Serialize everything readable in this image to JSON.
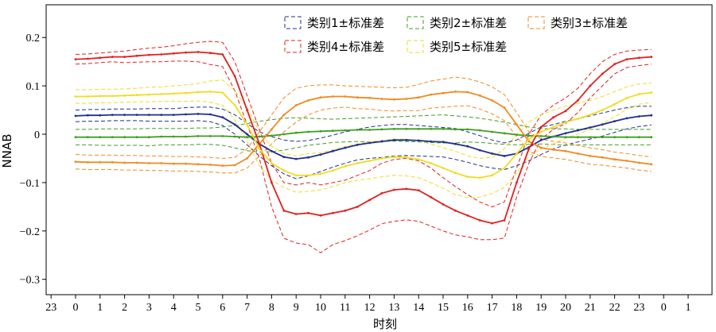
{
  "chart_data": {
    "type": "line",
    "xlabel": "时刻",
    "ylabel": "NNAB",
    "ylim": [
      -0.33,
      0.25
    ],
    "xlim": [
      -1,
      24.1
    ],
    "x_ticks": [
      {
        "pos": -1,
        "label": "23"
      },
      {
        "pos": 0,
        "label": "0"
      },
      {
        "pos": 1,
        "label": "1"
      },
      {
        "pos": 2,
        "label": "2"
      },
      {
        "pos": 3,
        "label": "3"
      },
      {
        "pos": 4,
        "label": "4"
      },
      {
        "pos": 5,
        "label": "5"
      },
      {
        "pos": 6,
        "label": "6"
      },
      {
        "pos": 7,
        "label": "7"
      },
      {
        "pos": 8,
        "label": "8"
      },
      {
        "pos": 9,
        "label": "9"
      },
      {
        "pos": 10,
        "label": "10"
      },
      {
        "pos": 11,
        "label": "11"
      },
      {
        "pos": 12,
        "label": "12"
      },
      {
        "pos": 13,
        "label": "13"
      },
      {
        "pos": 14,
        "label": "14"
      },
      {
        "pos": 15,
        "label": "15"
      },
      {
        "pos": 16,
        "label": "16"
      },
      {
        "pos": 17,
        "label": "17"
      },
      {
        "pos": 18,
        "label": "18"
      },
      {
        "pos": 19,
        "label": "19"
      },
      {
        "pos": 20,
        "label": "20"
      },
      {
        "pos": 21,
        "label": "21"
      },
      {
        "pos": 22,
        "label": "22"
      },
      {
        "pos": 23,
        "label": "23"
      },
      {
        "pos": 24,
        "label": "0"
      },
      {
        "pos": 25,
        "label": "1"
      }
    ],
    "y_ticks": [
      {
        "value": 0.2,
        "label": "0.2"
      },
      {
        "value": 0.1,
        "label": "0.1"
      },
      {
        "value": 0,
        "label": "0"
      },
      {
        "value": -0.1,
        "label": "−0.1"
      },
      {
        "value": -0.2,
        "label": "−0.2"
      },
      {
        "value": -0.3,
        "label": "−0.3"
      }
    ],
    "legend_position": "top-right",
    "x": [
      0,
      0.5,
      1,
      1.5,
      2,
      2.5,
      3,
      3.5,
      4,
      4.5,
      5,
      5.5,
      6,
      6.5,
      7,
      7.5,
      8,
      8.5,
      9,
      9.5,
      10,
      10.5,
      11,
      11.5,
      12,
      12.5,
      13,
      13.5,
      14,
      14.5,
      15,
      15.5,
      16,
      16.5,
      17,
      17.5,
      18,
      18.5,
      19,
      19.5,
      20,
      20.5,
      21,
      21.5,
      22,
      22.5,
      23,
      23.5
    ],
    "series": [
      {
        "name": "类别1±标准差",
        "color": "#1f2f8f",
        "mean": [
          0.038,
          0.039,
          0.039,
          0.04,
          0.04,
          0.04,
          0.04,
          0.04,
          0.04,
          0.041,
          0.042,
          0.041,
          0.035,
          0.02,
          0.0,
          -0.02,
          -0.035,
          -0.047,
          -0.051,
          -0.048,
          -0.042,
          -0.035,
          -0.028,
          -0.022,
          -0.018,
          -0.015,
          -0.012,
          -0.012,
          -0.013,
          -0.015,
          -0.016,
          -0.02,
          -0.025,
          -0.033,
          -0.04,
          -0.045,
          -0.04,
          -0.027,
          -0.012,
          -0.005,
          0.002,
          0.008,
          0.014,
          0.02,
          0.027,
          0.033,
          0.037,
          0.039
        ],
        "upper": [
          0.05,
          0.051,
          0.051,
          0.052,
          0.052,
          0.052,
          0.053,
          0.053,
          0.053,
          0.055,
          0.056,
          0.056,
          0.052,
          0.04,
          0.022,
          0.005,
          -0.005,
          -0.012,
          -0.015,
          -0.013,
          -0.008,
          -0.002,
          0.005,
          0.01,
          0.015,
          0.018,
          0.02,
          0.02,
          0.018,
          0.016,
          0.014,
          0.012,
          0.005,
          -0.003,
          -0.012,
          -0.018,
          -0.012,
          0.002,
          0.015,
          0.02,
          0.027,
          0.032,
          0.038,
          0.044,
          0.05,
          0.055,
          0.058,
          0.058
        ],
        "lower": [
          0.026,
          0.027,
          0.027,
          0.028,
          0.028,
          0.028,
          0.027,
          0.027,
          0.027,
          0.027,
          0.028,
          0.026,
          0.018,
          0.0,
          -0.022,
          -0.045,
          -0.065,
          -0.082,
          -0.092,
          -0.086,
          -0.077,
          -0.068,
          -0.06,
          -0.053,
          -0.05,
          -0.048,
          -0.045,
          -0.044,
          -0.045,
          -0.046,
          -0.047,
          -0.052,
          -0.058,
          -0.065,
          -0.07,
          -0.073,
          -0.065,
          -0.055,
          -0.042,
          -0.03,
          -0.022,
          -0.016,
          -0.01,
          -0.004,
          0.004,
          0.011,
          0.016,
          0.019
        ]
      },
      {
        "name": "类别2±标准差",
        "color": "#3f9f1f",
        "mean": [
          -0.006,
          -0.006,
          -0.006,
          -0.006,
          -0.006,
          -0.006,
          -0.006,
          -0.005,
          -0.005,
          -0.005,
          -0.004,
          -0.004,
          -0.004,
          -0.005,
          -0.006,
          -0.005,
          -0.003,
          0.0,
          0.003,
          0.005,
          0.006,
          0.007,
          0.008,
          0.009,
          0.009,
          0.01,
          0.011,
          0.011,
          0.011,
          0.011,
          0.011,
          0.01,
          0.01,
          0.008,
          0.005,
          0.002,
          -0.001,
          -0.003,
          -0.004,
          -0.005,
          -0.006,
          -0.006,
          -0.006,
          -0.006,
          -0.006,
          -0.006,
          -0.006,
          -0.006
        ],
        "upper": [
          0.01,
          0.01,
          0.011,
          0.011,
          0.011,
          0.011,
          0.012,
          0.012,
          0.012,
          0.012,
          0.013,
          0.013,
          0.015,
          0.018,
          0.022,
          0.027,
          0.03,
          0.033,
          0.034,
          0.033,
          0.032,
          0.031,
          0.032,
          0.033,
          0.034,
          0.035,
          0.036,
          0.037,
          0.038,
          0.039,
          0.04,
          0.038,
          0.036,
          0.033,
          0.029,
          0.025,
          0.02,
          0.015,
          0.012,
          0.011,
          0.011,
          0.01,
          0.01,
          0.01,
          0.01,
          0.01,
          0.01,
          0.01
        ],
        "lower": [
          -0.022,
          -0.022,
          -0.023,
          -0.023,
          -0.023,
          -0.023,
          -0.024,
          -0.022,
          -0.022,
          -0.022,
          -0.021,
          -0.021,
          -0.023,
          -0.028,
          -0.034,
          -0.037,
          -0.036,
          -0.033,
          -0.028,
          -0.023,
          -0.02,
          -0.017,
          -0.016,
          -0.015,
          -0.016,
          -0.015,
          -0.014,
          -0.015,
          -0.016,
          -0.017,
          -0.018,
          -0.018,
          -0.016,
          -0.017,
          -0.019,
          -0.021,
          -0.022,
          -0.021,
          -0.02,
          -0.021,
          -0.023,
          -0.022,
          -0.022,
          -0.022,
          -0.022,
          -0.022,
          -0.022,
          -0.022
        ]
      },
      {
        "name": "类别3±标准差",
        "color": "#f08a20",
        "mean": [
          -0.057,
          -0.058,
          -0.058,
          -0.058,
          -0.059,
          -0.059,
          -0.06,
          -0.06,
          -0.061,
          -0.061,
          -0.062,
          -0.063,
          -0.065,
          -0.064,
          -0.05,
          -0.02,
          0.01,
          0.04,
          0.06,
          0.07,
          0.076,
          0.078,
          0.078,
          0.076,
          0.075,
          0.073,
          0.072,
          0.073,
          0.076,
          0.082,
          0.085,
          0.088,
          0.087,
          0.08,
          0.07,
          0.055,
          0.02,
          -0.015,
          -0.028,
          -0.032,
          -0.035,
          -0.04,
          -0.045,
          -0.048,
          -0.052,
          -0.055,
          -0.059,
          -0.062
        ],
        "upper": [
          -0.042,
          -0.043,
          -0.043,
          -0.043,
          -0.044,
          -0.044,
          -0.045,
          -0.045,
          -0.046,
          -0.046,
          -0.047,
          -0.048,
          -0.05,
          -0.048,
          -0.03,
          0.005,
          0.04,
          0.075,
          0.095,
          0.1,
          0.102,
          0.102,
          0.1,
          0.099,
          0.098,
          0.097,
          0.096,
          0.097,
          0.103,
          0.11,
          0.114,
          0.118,
          0.115,
          0.108,
          0.098,
          0.082,
          0.045,
          0.005,
          -0.01,
          -0.015,
          -0.018,
          -0.023,
          -0.028,
          -0.032,
          -0.037,
          -0.04,
          -0.044,
          -0.047
        ],
        "lower": [
          -0.072,
          -0.073,
          -0.073,
          -0.073,
          -0.074,
          -0.074,
          -0.075,
          -0.075,
          -0.076,
          -0.076,
          -0.077,
          -0.078,
          -0.08,
          -0.08,
          -0.07,
          -0.045,
          -0.02,
          0.005,
          0.025,
          0.04,
          0.05,
          0.054,
          0.056,
          0.053,
          0.052,
          0.049,
          0.048,
          0.049,
          0.049,
          0.054,
          0.056,
          0.058,
          0.059,
          0.052,
          0.042,
          0.028,
          -0.005,
          -0.035,
          -0.046,
          -0.049,
          -0.052,
          -0.057,
          -0.062,
          -0.064,
          -0.067,
          -0.07,
          -0.074,
          -0.077
        ]
      },
      {
        "name": "类别4±标准差",
        "color": "#e02020",
        "mean": [
          0.155,
          0.156,
          0.158,
          0.16,
          0.16,
          0.162,
          0.164,
          0.165,
          0.167,
          0.169,
          0.17,
          0.168,
          0.165,
          0.12,
          0.05,
          -0.02,
          -0.1,
          -0.158,
          -0.165,
          -0.163,
          -0.168,
          -0.163,
          -0.158,
          -0.15,
          -0.136,
          -0.122,
          -0.115,
          -0.113,
          -0.116,
          -0.13,
          -0.145,
          -0.158,
          -0.168,
          -0.178,
          -0.184,
          -0.178,
          -0.1,
          -0.03,
          0.015,
          0.035,
          0.048,
          0.07,
          0.1,
          0.125,
          0.145,
          0.155,
          0.158,
          0.16
        ],
        "upper": [
          0.165,
          0.166,
          0.168,
          0.17,
          0.172,
          0.175,
          0.178,
          0.18,
          0.183,
          0.187,
          0.19,
          0.192,
          0.19,
          0.15,
          0.08,
          0.01,
          -0.06,
          -0.1,
          -0.105,
          -0.1,
          -0.105,
          -0.1,
          -0.095,
          -0.085,
          -0.075,
          -0.06,
          -0.052,
          -0.05,
          -0.055,
          -0.07,
          -0.09,
          -0.108,
          -0.125,
          -0.14,
          -0.15,
          -0.14,
          -0.07,
          0.0,
          0.04,
          0.06,
          0.075,
          0.095,
          0.125,
          0.15,
          0.165,
          0.172,
          0.174,
          0.175
        ],
        "lower": [
          0.145,
          0.146,
          0.148,
          0.15,
          0.148,
          0.149,
          0.15,
          0.15,
          0.151,
          0.151,
          0.15,
          0.144,
          0.14,
          0.09,
          0.02,
          -0.05,
          -0.15,
          -0.215,
          -0.225,
          -0.228,
          -0.245,
          -0.228,
          -0.22,
          -0.21,
          -0.198,
          -0.185,
          -0.18,
          -0.177,
          -0.18,
          -0.19,
          -0.2,
          -0.208,
          -0.212,
          -0.218,
          -0.218,
          -0.215,
          -0.13,
          -0.06,
          -0.01,
          0.01,
          0.022,
          0.045,
          0.075,
          0.1,
          0.125,
          0.138,
          0.142,
          0.145
        ]
      },
      {
        "name": "类别5±标准差",
        "color": "#eedd22",
        "mean": [
          0.078,
          0.078,
          0.079,
          0.079,
          0.08,
          0.081,
          0.082,
          0.083,
          0.084,
          0.085,
          0.087,
          0.088,
          0.086,
          0.06,
          0.02,
          -0.03,
          -0.06,
          -0.075,
          -0.085,
          -0.085,
          -0.082,
          -0.075,
          -0.066,
          -0.06,
          -0.055,
          -0.05,
          -0.047,
          -0.048,
          -0.052,
          -0.06,
          -0.07,
          -0.08,
          -0.088,
          -0.09,
          -0.085,
          -0.07,
          -0.04,
          -0.01,
          0.005,
          0.015,
          0.025,
          0.032,
          0.04,
          0.05,
          0.062,
          0.075,
          0.083,
          0.086
        ],
        "upper": [
          0.092,
          0.092,
          0.093,
          0.093,
          0.094,
          0.095,
          0.097,
          0.098,
          0.1,
          0.102,
          0.105,
          0.11,
          0.112,
          0.09,
          0.055,
          0.005,
          -0.025,
          -0.04,
          -0.045,
          -0.04,
          -0.038,
          -0.032,
          -0.025,
          -0.02,
          -0.016,
          -0.012,
          -0.01,
          -0.01,
          -0.014,
          -0.02,
          -0.028,
          -0.035,
          -0.045,
          -0.05,
          -0.048,
          -0.03,
          0.0,
          0.025,
          0.04,
          0.05,
          0.058,
          0.064,
          0.07,
          0.078,
          0.088,
          0.098,
          0.104,
          0.106
        ],
        "lower": [
          0.064,
          0.064,
          0.065,
          0.065,
          0.066,
          0.067,
          0.067,
          0.068,
          0.068,
          0.068,
          0.069,
          0.066,
          0.06,
          0.03,
          -0.015,
          -0.065,
          -0.095,
          -0.11,
          -0.12,
          -0.118,
          -0.115,
          -0.108,
          -0.1,
          -0.095,
          -0.092,
          -0.088,
          -0.085,
          -0.086,
          -0.09,
          -0.1,
          -0.112,
          -0.125,
          -0.131,
          -0.13,
          -0.122,
          -0.11,
          -0.08,
          -0.045,
          -0.03,
          -0.02,
          -0.008,
          0.0,
          0.01,
          0.022,
          0.036,
          0.052,
          0.062,
          0.066
        ]
      }
    ]
  }
}
